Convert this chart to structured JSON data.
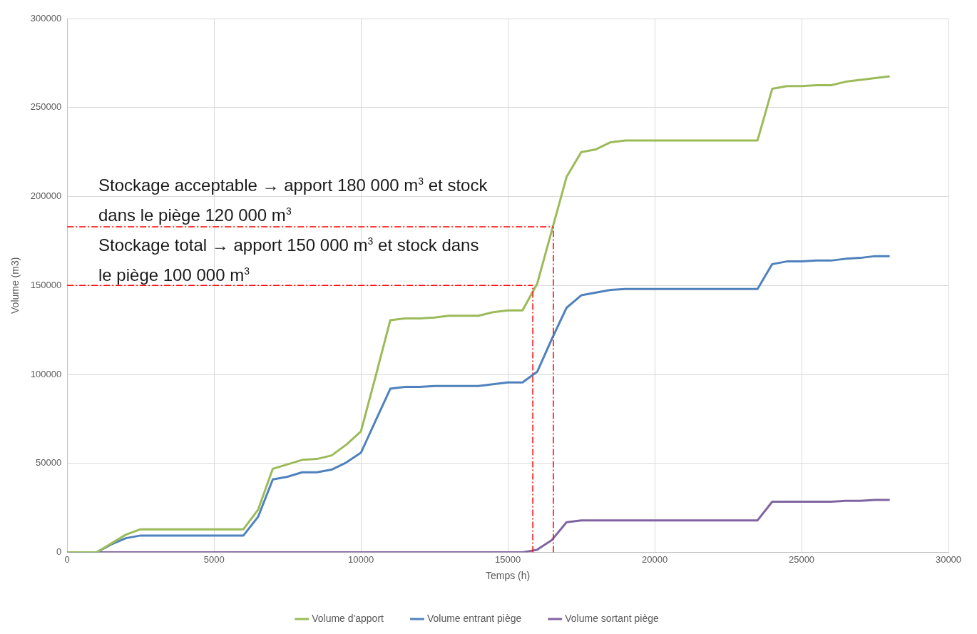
{
  "chart_data": {
    "type": "line",
    "xlabel": "Temps (h)",
    "ylabel": "Volume (m3)",
    "annotations": [
      "Stockage acceptable → apport 180 000 m$^{3}$ et stock dans le piège 120 000 m$^{3}$",
      "Stockage total → apport 150 000 m$^{3}$ et stock dans le piège 100 000 m$^{3}$"
    ],
    "x": [
      0,
      500,
      1000,
      1500,
      2000,
      2500,
      3000,
      3500,
      4000,
      4500,
      5000,
      5500,
      6000,
      6500,
      7000,
      7500,
      8000,
      8500,
      9000,
      9500,
      10000,
      10500,
      11000,
      11500,
      12000,
      12500,
      13000,
      13500,
      14000,
      14500,
      15000,
      15500,
      16000,
      16500,
      17000,
      17500,
      18000,
      18500,
      19000,
      19500,
      20000,
      20500,
      21000,
      21500,
      22000,
      22500,
      23000,
      23500,
      24000,
      24500,
      25000,
      25500,
      26000,
      26500,
      27000,
      27500,
      28000
    ],
    "series": [
      {
        "name": "Volume d'apport",
        "color": "#9bbb59",
        "values": [
          0,
          0,
          0,
          5000,
          10000,
          13000,
          13000,
          13000,
          13000,
          13000,
          13000,
          13000,
          13000,
          24000,
          47000,
          49500,
          52000,
          52500,
          54500,
          60500,
          68000,
          99000,
          130500,
          131500,
          131500,
          132000,
          133000,
          133000,
          133000,
          135000,
          136000,
          136000,
          151000,
          181000,
          211000,
          225000,
          226500,
          230500,
          231500,
          231500,
          231500,
          231500,
          231500,
          231500,
          231500,
          231500,
          231500,
          231500,
          260500,
          262000,
          262000,
          262500,
          262500,
          264500,
          265500,
          266500,
          267500
        ]
      },
      {
        "name": "Volume entrant piège",
        "color": "#4f81bd",
        "values": [
          0,
          0,
          0,
          4500,
          8000,
          9500,
          9500,
          9500,
          9500,
          9500,
          9500,
          9500,
          9500,
          20000,
          41000,
          42500,
          45000,
          45000,
          46500,
          50500,
          56000,
          74000,
          92000,
          93000,
          93000,
          93500,
          93500,
          93500,
          93500,
          94500,
          95500,
          95500,
          101500,
          120000,
          137500,
          144500,
          146000,
          147500,
          148000,
          148000,
          148000,
          148000,
          148000,
          148000,
          148000,
          148000,
          148000,
          148000,
          162000,
          163500,
          163500,
          164000,
          164000,
          165000,
          165500,
          166500,
          166500
        ]
      },
      {
        "name": "Volume sortant piège",
        "color": "#8064a2",
        "values": [
          0,
          0,
          0,
          0,
          0,
          0,
          0,
          0,
          0,
          0,
          0,
          0,
          0,
          0,
          0,
          0,
          0,
          0,
          0,
          0,
          0,
          0,
          0,
          0,
          0,
          0,
          0,
          0,
          0,
          0,
          0,
          0,
          1500,
          7000,
          17000,
          18000,
          18000,
          18000,
          18000,
          18000,
          18000,
          18000,
          18000,
          18000,
          18000,
          18000,
          18000,
          18000,
          28500,
          28500,
          28500,
          28500,
          28500,
          29000,
          29000,
          29500,
          29500
        ]
      }
    ],
    "xlim": [
      0,
      30000
    ],
    "ylim": [
      0,
      300000
    ],
    "xticks": [
      0,
      5000,
      10000,
      15000,
      20000,
      25000,
      30000
    ],
    "yticks": [
      0,
      50000,
      100000,
      150000,
      200000,
      250000,
      300000
    ],
    "grid": true,
    "legend": "bottom",
    "marker": "none",
    "line_style": "solid",
    "ref_lines": [
      {
        "axis": "y",
        "value": 183000,
        "color": "#ff0000",
        "line_style": "dashed"
      },
      {
        "axis": "x",
        "value": 16550,
        "color": "#ff0000",
        "line_style": "dashed"
      },
      {
        "axis": "y",
        "value": 150000,
        "color": "#ff0000",
        "line_style": "dashed"
      },
      {
        "axis": "x",
        "value": 15850,
        "color": "#ff0000",
        "line_style": "dashed"
      }
    ]
  }
}
